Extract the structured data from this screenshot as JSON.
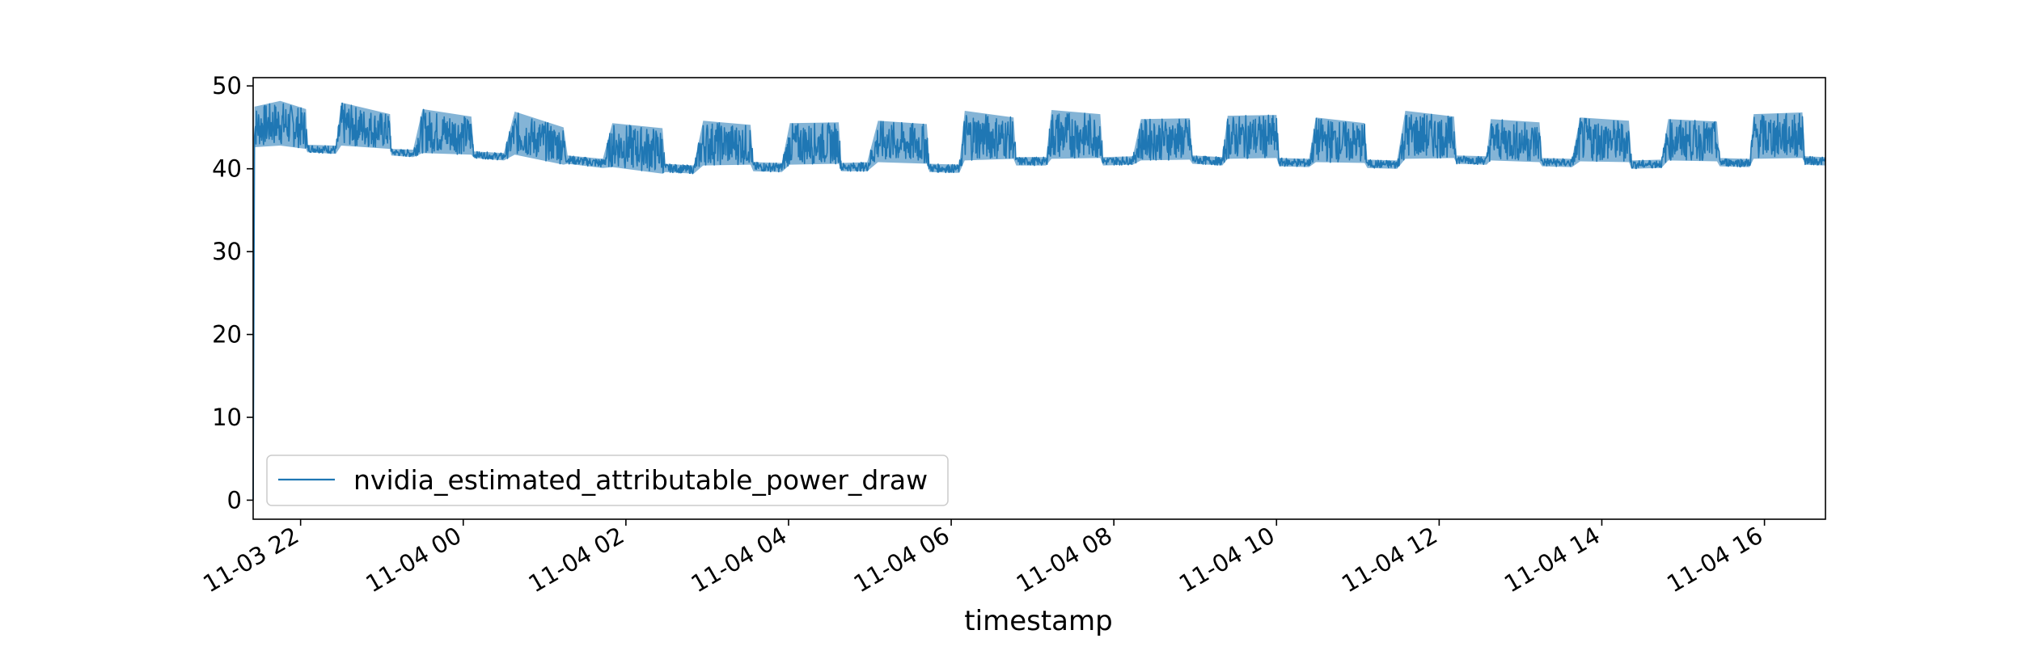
{
  "chart_data": {
    "type": "line",
    "title": "",
    "xlabel": "timestamp",
    "ylabel": "",
    "ylim": [
      -2.3,
      51
    ],
    "xlim": [
      "2025-11-03 21:25",
      "2025-11-04 16:45"
    ],
    "x_unit": "datetime",
    "y_ticks": [
      0,
      10,
      20,
      30,
      40,
      50
    ],
    "y_tick_labels": [
      "0",
      "10",
      "20",
      "30",
      "40",
      "50"
    ],
    "x_ticks": [
      "2025-11-03 22:00",
      "2025-11-04 00:00",
      "2025-11-04 02:00",
      "2025-11-04 04:00",
      "2025-11-04 06:00",
      "2025-11-04 08:00",
      "2025-11-04 10:00",
      "2025-11-04 12:00",
      "2025-11-04 14:00",
      "2025-11-04 16:00"
    ],
    "x_tick_labels": [
      "11-03 22",
      "11-04 00",
      "11-04 02",
      "11-04 04",
      "11-04 06",
      "11-04 08",
      "11-04 10",
      "11-04 12",
      "11-04 14",
      "11-04 16"
    ],
    "grid": false,
    "legend": {
      "placement": "lower-left",
      "entries": [
        "nvidia_estimated_attributable_power_draw"
      ]
    },
    "series": [
      {
        "name": "nvidia_estimated_attributable_power_draw",
        "color": "#1f77b4",
        "x": [
          "2025-11-03 21:25",
          "2025-11-03 21:26",
          "2025-11-03 21:45",
          "2025-11-03 22:04",
          "2025-11-03 22:05",
          "2025-11-03 22:26",
          "2025-11-03 22:30",
          "2025-11-03 23:06",
          "2025-11-03 23:07",
          "2025-11-03 23:23",
          "2025-11-03 23:30",
          "2025-11-04 00:06",
          "2025-11-04 00:08",
          "2025-11-04 00:30",
          "2025-11-04 00:38",
          "2025-11-04 01:14",
          "2025-11-04 01:17",
          "2025-11-04 01:43",
          "2025-11-04 01:50",
          "2025-11-04 02:27",
          "2025-11-04 02:29",
          "2025-11-04 02:50",
          "2025-11-04 02:57",
          "2025-11-04 03:32",
          "2025-11-04 03:34",
          "2025-11-04 03:55",
          "2025-11-04 04:01",
          "2025-11-04 04:37",
          "2025-11-04 04:39",
          "2025-11-04 04:58",
          "2025-11-04 05:06",
          "2025-11-04 05:42",
          "2025-11-04 05:44",
          "2025-11-04 06:06",
          "2025-11-04 06:10",
          "2025-11-04 06:46",
          "2025-11-04 06:48",
          "2025-11-04 07:10",
          "2025-11-04 07:14",
          "2025-11-04 07:50",
          "2025-11-04 07:52",
          "2025-11-04 08:14",
          "2025-11-04 08:20",
          "2025-11-04 08:56",
          "2025-11-04 08:58",
          "2025-11-04 09:20",
          "2025-11-04 09:24",
          "2025-11-04 10:00",
          "2025-11-04 10:02",
          "2025-11-04 10:24",
          "2025-11-04 10:29",
          "2025-11-04 11:05",
          "2025-11-04 11:07",
          "2025-11-04 11:29",
          "2025-11-04 11:35",
          "2025-11-04 12:11",
          "2025-11-04 12:13",
          "2025-11-04 12:35",
          "2025-11-04 12:38",
          "2025-11-04 13:14",
          "2025-11-04 13:16",
          "2025-11-04 13:38",
          "2025-11-04 13:44",
          "2025-11-04 14:20",
          "2025-11-04 14:22",
          "2025-11-04 14:44",
          "2025-11-04 14:49",
          "2025-11-04 15:25",
          "2025-11-04 15:27",
          "2025-11-04 15:49",
          "2025-11-04 15:52",
          "2025-11-04 16:28",
          "2025-11-04 16:30",
          "2025-11-04 16:45"
        ],
        "y": [
          0,
          44.5,
          45.5,
          44.8,
          42.6,
          42.4,
          44.8,
          44.2,
          42.1,
          41.9,
          44.2,
          43.8,
          41.8,
          41.6,
          43.8,
          42.5,
          41.2,
          40.8,
          42.8,
          42.2,
          40.2,
          40.0,
          42.7,
          42.8,
          40.4,
          40.3,
          42.9,
          43.0,
          40.3,
          40.4,
          43.0,
          42.9,
          40.2,
          40.1,
          43.2,
          43.5,
          41.0,
          41.0,
          43.5,
          43.6,
          41.0,
          41.1,
          43.2,
          43.3,
          41.2,
          41.0,
          43.4,
          43.5,
          40.9,
          40.8,
          43.2,
          43.0,
          40.7,
          40.6,
          43.4,
          43.6,
          41.2,
          41.1,
          43.2,
          43.0,
          40.9,
          40.8,
          43.1,
          43.0,
          40.6,
          40.7,
          43.2,
          43.1,
          40.9,
          40.8,
          43.4,
          43.5,
          41.1,
          41.0
        ],
        "band_min": [
          0,
          42.6,
          42.8,
          42.4,
          42.0,
          41.8,
          42.8,
          42.4,
          41.6,
          41.4,
          41.9,
          41.7,
          41.3,
          41.0,
          41.7,
          40.5,
          40.6,
          40.1,
          40.2,
          39.4,
          39.6,
          39.4,
          40.4,
          40.5,
          39.7,
          39.6,
          40.5,
          40.6,
          39.7,
          39.7,
          40.8,
          40.6,
          39.6,
          39.5,
          41.0,
          41.2,
          40.4,
          40.4,
          41.2,
          41.3,
          40.4,
          40.5,
          41.0,
          41.1,
          40.6,
          40.4,
          41.2,
          41.3,
          40.3,
          40.2,
          40.8,
          40.7,
          40.1,
          40.0,
          41.2,
          41.3,
          40.6,
          40.5,
          41.0,
          40.8,
          40.3,
          40.2,
          40.9,
          40.8,
          40.0,
          40.1,
          41.0,
          40.9,
          40.3,
          40.2,
          41.2,
          41.3,
          40.5,
          40.4
        ],
        "band_max": [
          0,
          47.5,
          48.2,
          47.2,
          42.9,
          42.8,
          48.0,
          46.6,
          42.4,
          42.3,
          47.2,
          46.3,
          42.1,
          41.9,
          46.9,
          45.0,
          41.6,
          41.2,
          45.5,
          44.9,
          40.6,
          40.4,
          45.8,
          45.3,
          40.8,
          40.7,
          45.5,
          45.6,
          40.7,
          40.8,
          45.8,
          45.4,
          40.6,
          40.5,
          47.0,
          46.2,
          41.4,
          41.4,
          47.1,
          46.6,
          41.4,
          41.5,
          46.0,
          46.1,
          41.6,
          41.4,
          46.4,
          46.5,
          41.3,
          41.2,
          46.2,
          45.5,
          41.1,
          41.0,
          47.0,
          46.3,
          41.6,
          41.5,
          46.0,
          45.6,
          41.3,
          41.2,
          46.2,
          45.8,
          41.0,
          41.1,
          46.0,
          45.7,
          41.3,
          41.2,
          46.6,
          46.8,
          41.5,
          41.4
        ]
      }
    ]
  }
}
